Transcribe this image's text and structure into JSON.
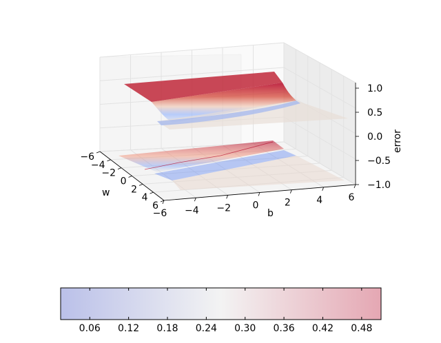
{
  "chart_data": [
    {
      "type": "surface3d",
      "xlabel": "w",
      "ylabel": "b",
      "zlabel": "error",
      "xlim": [
        -6,
        6
      ],
      "ylim": [
        -6,
        6
      ],
      "zlim": [
        -1,
        1
      ],
      "x_ticks": [
        "−6",
        "−4",
        "−2",
        "0",
        "2",
        "4",
        "6"
      ],
      "y_ticks": [
        "−6",
        "−4",
        "−2",
        "0",
        "2",
        "4",
        "6"
      ],
      "z_ticks": [
        "−1.0",
        "−0.5",
        "0.0",
        "0.5",
        "1.0"
      ],
      "grid": true,
      "colormap": "coolwarm",
      "surfaces": [
        {
          "kind": "surface",
          "z_range": [
            0.0,
            1.0
          ]
        },
        {
          "kind": "filled-contour projection",
          "z_offset": -1.0
        }
      ]
    },
    {
      "type": "colorbar",
      "orientation": "horizontal",
      "colormap": "coolwarm",
      "range": [
        0.015,
        0.51
      ],
      "ticks": [
        0.06,
        0.12,
        0.18,
        0.24,
        0.3,
        0.36,
        0.42,
        0.48
      ],
      "tick_labels": [
        "0.06",
        "0.12",
        "0.18",
        "0.24",
        "0.30",
        "0.36",
        "0.42",
        "0.48"
      ]
    }
  ],
  "colors": {
    "cool": "#3b4cc0",
    "neutral": "#dddddd",
    "warm": "#b40426",
    "pane": "#f2f2f2",
    "grid": "#e6e6e6"
  }
}
